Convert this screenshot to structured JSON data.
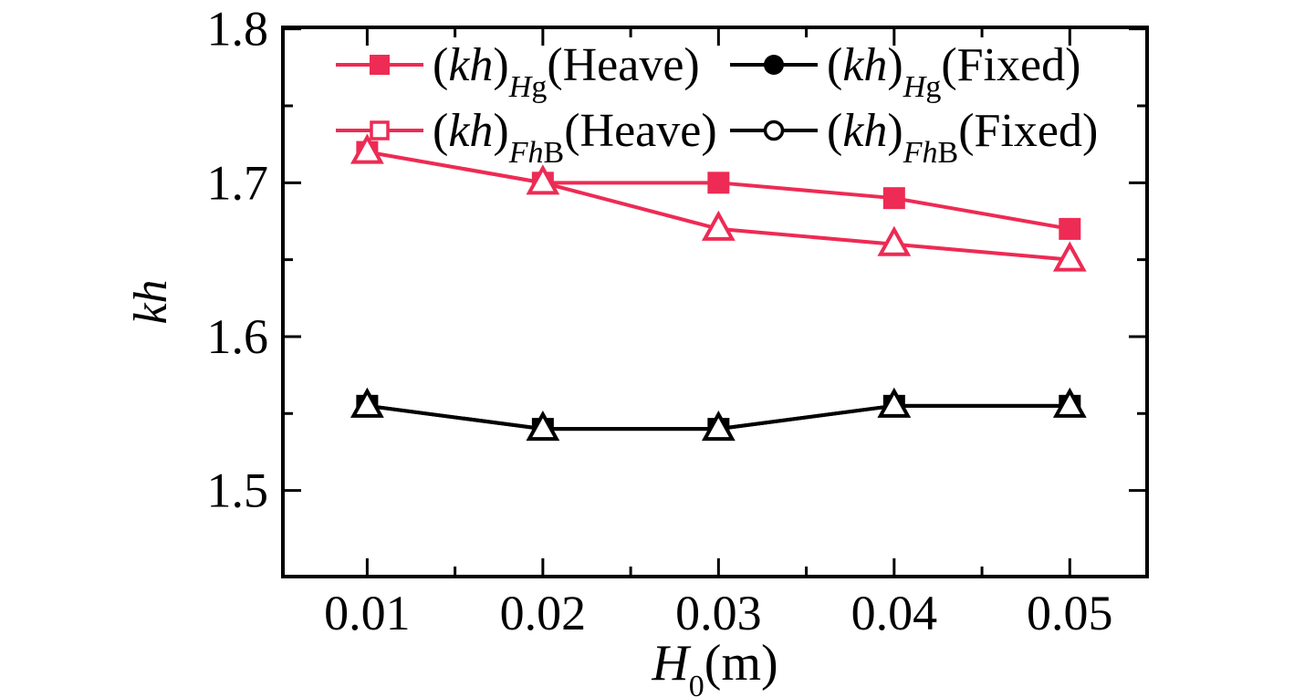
{
  "figure": {
    "background": "#ffffff",
    "title": ""
  },
  "colors": {
    "heave_series": "#ED2B54",
    "fixed_series": "#000000",
    "axis": "#000000",
    "marker_fill_open": "#ffffff"
  },
  "chart_data": {
    "type": "line",
    "x": [
      0.01,
      0.02,
      0.03,
      0.04,
      0.05
    ],
    "xlabel": "H0(m)",
    "ylabel": "kh",
    "xlabel_runs": [
      [
        "H",
        "italic"
      ],
      [
        "0",
        "sub"
      ],
      [
        "(m)",
        "roman"
      ]
    ],
    "ylabel_runs": [
      [
        "kh",
        "italic"
      ]
    ],
    "xlim": [
      0.0052,
      0.0544
    ],
    "ylim": [
      1.444,
      1.801
    ],
    "x_major_ticks": [
      0.01,
      0.02,
      0.03,
      0.04,
      0.05
    ],
    "x_minor_ticks": [
      0.015,
      0.025,
      0.035,
      0.045
    ],
    "y_major_ticks": [
      1.5,
      1.6,
      1.7,
      1.8
    ],
    "y_minor_ticks": [
      1.55,
      1.65,
      1.75
    ],
    "x_tick_labels": [
      "0.01",
      "0.02",
      "0.03",
      "0.04",
      "0.05"
    ],
    "y_tick_labels": [
      "1.5",
      "1.6",
      "1.7",
      "1.8"
    ],
    "grid": false,
    "legend_position": "top-inside",
    "series": [
      {
        "id": "hg-heave",
        "label": "(kh)Hg(Heave)",
        "label_runs": [
          [
            "(",
            "roman"
          ],
          [
            "kh",
            "italic"
          ],
          [
            ")",
            "roman"
          ],
          [
            "H",
            "italic-sub"
          ],
          [
            "g",
            "sub"
          ],
          [
            "(Heave)",
            "roman"
          ]
        ],
        "color": "#ED2B54",
        "plot_marker": "filled-square",
        "legend_marker": "filled-square",
        "values": [
          1.72,
          1.7,
          1.7,
          1.69,
          1.67
        ]
      },
      {
        "id": "fhb-heave",
        "label": "(kh)FhB(Heave)",
        "label_runs": [
          [
            "(",
            "roman"
          ],
          [
            "kh",
            "italic"
          ],
          [
            ")",
            "roman"
          ],
          [
            "F",
            "italic-sub"
          ],
          [
            "h",
            "italic-sub"
          ],
          [
            "B",
            "sub"
          ],
          [
            "(Heave)",
            "roman"
          ]
        ],
        "color": "#ED2B54",
        "plot_marker": "open-triangle",
        "legend_marker": "open-square",
        "values": [
          1.72,
          1.7,
          1.67,
          1.66,
          1.65
        ]
      },
      {
        "id": "hg-fixed",
        "label": "(kh)Hg(Fixed)",
        "label_runs": [
          [
            "(",
            "roman"
          ],
          [
            "kh",
            "italic"
          ],
          [
            ")",
            "roman"
          ],
          [
            "H",
            "italic-sub"
          ],
          [
            "g",
            "sub"
          ],
          [
            "(Fixed)",
            "roman"
          ]
        ],
        "color": "#000000",
        "plot_marker": "filled-square",
        "legend_marker": "filled-circle",
        "values": [
          1.555,
          1.54,
          1.54,
          1.555,
          1.555
        ]
      },
      {
        "id": "fhb-fixed",
        "label": "(kh)FhB(Fixed)",
        "label_runs": [
          [
            "(",
            "roman"
          ],
          [
            "kh",
            "italic"
          ],
          [
            ")",
            "roman"
          ],
          [
            "F",
            "italic-sub"
          ],
          [
            "h",
            "italic-sub"
          ],
          [
            "B",
            "sub"
          ],
          [
            "(Fixed)",
            "roman"
          ]
        ],
        "color": "#000000",
        "plot_marker": "open-triangle",
        "legend_marker": "open-circle",
        "values": [
          1.555,
          1.54,
          1.54,
          1.555,
          1.555
        ]
      }
    ],
    "legend_columns": [
      [
        "hg-heave",
        "fhb-heave"
      ],
      [
        "hg-fixed",
        "fhb-fixed"
      ]
    ]
  }
}
